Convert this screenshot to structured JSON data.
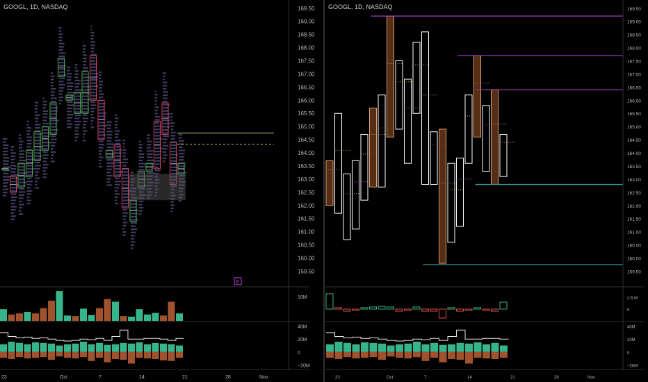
{
  "colors": {
    "background": "#000000",
    "axis_text": "#b8b8b8",
    "separator": "#3a3a3a",
    "up": "#38b48a",
    "down": "#a0522d",
    "profile": "#4b4670",
    "purple_line": "#a040c0",
    "cyan_line": "#3aa6a6",
    "box_up": "#ffffff",
    "box_down": "#d9a070"
  },
  "left_panel": {
    "title": "GOOGL, 1D, NASDAQ",
    "earnings_marker": "E"
  },
  "right_panel": {
    "title": "GOOGL, 1D, NASDAQ"
  },
  "chart_data": [
    {
      "type": "candlestick",
      "panel": "left-main",
      "y_ticks": [
        "169.50",
        "169.00",
        "168.50",
        "168.00",
        "167.50",
        "167.00",
        "166.50",
        "166.00",
        "165.50",
        "165.00",
        "164.50",
        "164.00",
        "163.50",
        "163.00",
        "162.50",
        "162.00",
        "161.50",
        "161.00",
        "160.50",
        "160.00",
        "159.50"
      ],
      "ylim": [
        159.3,
        169.6
      ],
      "x_ticks": [
        "23",
        "Oct",
        "7",
        "14",
        "21",
        "28",
        "Nov"
      ],
      "bars": [
        {
          "o": 163.4,
          "c": 163.4
        },
        {
          "o": 163.1,
          "c": 162.5
        },
        {
          "o": 162.7,
          "c": 163.6
        },
        {
          "o": 163.1,
          "c": 164.1
        },
        {
          "o": 163.7,
          "c": 164.8
        },
        {
          "o": 164.1,
          "c": 165.0
        },
        {
          "o": 164.7,
          "c": 165.9
        },
        {
          "o": 166.9,
          "c": 167.6
        },
        {
          "o": 166.0,
          "c": 166.2
        },
        {
          "o": 165.5,
          "c": 166.3
        },
        {
          "o": 165.5,
          "c": 167.1
        },
        {
          "o": 167.7,
          "c": 166.0
        },
        {
          "o": 166.0,
          "c": 164.5
        },
        {
          "o": 163.8,
          "c": 164.1
        },
        {
          "o": 164.3,
          "c": 163.1
        },
        {
          "o": 163.4,
          "c": 161.9
        },
        {
          "o": 161.4,
          "c": 162.2
        },
        {
          "o": 162.7,
          "c": 163.3
        },
        {
          "o": 163.3,
          "c": 163.6
        },
        {
          "o": 165.2,
          "c": 163.4
        },
        {
          "o": 165.9,
          "c": 164.7
        },
        {
          "o": 164.4,
          "c": 162.8
        },
        {
          "o": 163.2,
          "c": 163.6
        }
      ],
      "levels": [
        {
          "y": 164.75,
          "style": "solid"
        },
        {
          "y": 164.33,
          "style": "dashed"
        }
      ],
      "value_area_box": [
        162.2,
        163.2
      ]
    },
    {
      "type": "bar",
      "panel": "left-volume",
      "y_ticks": [
        "10M"
      ],
      "values": [
        22,
        12,
        14,
        17,
        14,
        24,
        38,
        56,
        10,
        9,
        23,
        11,
        24,
        41,
        36,
        9,
        8,
        22,
        12,
        15,
        10,
        36,
        14
      ],
      "direction": [
        "up",
        "down",
        "down",
        "up",
        "down",
        "down",
        "down",
        "up",
        "up",
        "down",
        "up",
        "up",
        "down",
        "down",
        "up",
        "down",
        "up",
        "up",
        "up",
        "up",
        "down",
        "down",
        "up"
      ]
    },
    {
      "type": "bar",
      "panel": "left-delta",
      "y_ticks": [
        "40M",
        "20M",
        "0",
        "−20M"
      ],
      "ylim": [
        -25,
        45
      ],
      "positive": [
        12,
        16,
        14,
        12,
        15,
        14,
        13,
        10,
        12,
        13,
        16,
        12,
        14,
        11,
        12,
        14,
        13,
        15,
        12,
        14,
        13,
        12,
        10
      ],
      "negative": [
        -9,
        -11,
        -8,
        -10,
        -9,
        -8,
        -12,
        -7,
        -9,
        -10,
        -8,
        -14,
        -9,
        -16,
        -11,
        -12,
        -18,
        -9,
        -10,
        -11,
        -13,
        -14,
        -9
      ],
      "line": [
        30,
        24,
        22,
        23,
        21,
        22,
        20,
        18,
        17,
        18,
        20,
        19,
        21,
        18,
        24,
        34,
        20,
        20,
        21,
        21,
        20,
        18,
        21
      ]
    },
    {
      "type": "box",
      "panel": "right-main",
      "y_ticks": [
        "169.50",
        "169.00",
        "168.50",
        "168.00",
        "167.50",
        "167.00",
        "166.50",
        "166.00",
        "165.50",
        "165.00",
        "164.50",
        "164.00",
        "163.50",
        "163.00",
        "162.50",
        "162.00",
        "161.50",
        "161.00",
        "160.50",
        "160.00",
        "159.50"
      ],
      "ylim": [
        159.3,
        169.6
      ],
      "x_ticks": [
        "23",
        "Oct",
        "7",
        "14",
        "21",
        "28",
        "Nov"
      ],
      "boxes": [
        {
          "lo": 162.0,
          "hi": 163.7,
          "dir": "down"
        },
        {
          "lo": 161.7,
          "hi": 165.5,
          "dir": "up"
        },
        {
          "lo": 160.7,
          "hi": 163.2,
          "dir": "up"
        },
        {
          "lo": 161.1,
          "hi": 163.7,
          "dir": "up"
        },
        {
          "lo": 162.2,
          "hi": 164.7,
          "dir": "up"
        },
        {
          "lo": 162.7,
          "hi": 165.7,
          "dir": "down"
        },
        {
          "lo": 162.7,
          "hi": 166.2,
          "dir": "up"
        },
        {
          "lo": 164.6,
          "hi": 169.2,
          "dir": "down"
        },
        {
          "lo": 164.9,
          "hi": 167.5,
          "dir": "up"
        },
        {
          "lo": 163.6,
          "hi": 166.8,
          "dir": "up"
        },
        {
          "lo": 165.5,
          "hi": 168.2,
          "dir": "up"
        },
        {
          "lo": 162.8,
          "hi": 168.6,
          "dir": "up"
        },
        {
          "lo": 162.8,
          "hi": 164.8,
          "dir": "up"
        },
        {
          "lo": 159.8,
          "hi": 164.9,
          "dir": "down"
        },
        {
          "lo": 160.6,
          "hi": 163.6,
          "dir": "up"
        },
        {
          "lo": 161.2,
          "hi": 163.8,
          "dir": "up"
        },
        {
          "lo": 163.6,
          "hi": 166.2,
          "dir": "up"
        },
        {
          "lo": 164.6,
          "hi": 167.7,
          "dir": "down"
        },
        {
          "lo": 163.3,
          "hi": 165.8,
          "dir": "up"
        },
        {
          "lo": 162.8,
          "hi": 166.4,
          "dir": "down"
        },
        {
          "lo": 163.1,
          "hi": 164.7,
          "dir": "up"
        }
      ],
      "purple_levels": [
        {
          "from": 5,
          "y": 169.2
        },
        {
          "from": 15,
          "y": 167.7
        },
        {
          "from": 17,
          "y": 166.4
        }
      ],
      "cyan_levels": [
        {
          "from": 17,
          "y": 162.8
        },
        {
          "from": 11,
          "y": 159.75
        }
      ]
    },
    {
      "type": "bar",
      "panel": "right-volume",
      "y_ticks": [
        "2.5 M",
        "0"
      ],
      "values": [
        2.2,
        0.1,
        -0.3,
        -0.2,
        0.1,
        0.3,
        0.4,
        0.3,
        -0.3,
        -0.2,
        0.3,
        -0.3,
        -0.3,
        -1.3,
        0.1,
        -0.3,
        -0.2,
        0.2,
        -0.2,
        -0.3,
        1.0
      ],
      "direction": [
        "up",
        "down",
        "down",
        "down",
        "up",
        "up",
        "up",
        "up",
        "down",
        "down",
        "up",
        "down",
        "down",
        "down",
        "up",
        "down",
        "down",
        "up",
        "down",
        "down",
        "up"
      ]
    },
    {
      "type": "bar",
      "panel": "right-delta",
      "y_ticks": [
        "40M",
        "20M",
        "0",
        "−20M"
      ],
      "ylim": [
        -25,
        45
      ],
      "positive": [
        12,
        16,
        14,
        12,
        15,
        14,
        13,
        10,
        12,
        13,
        16,
        12,
        14,
        11,
        12,
        14,
        13,
        15,
        12,
        14,
        10
      ],
      "negative": [
        -9,
        -11,
        -8,
        -10,
        -9,
        -8,
        -12,
        -7,
        -9,
        -10,
        -8,
        -14,
        -9,
        -16,
        -11,
        -12,
        -18,
        -9,
        -10,
        -11,
        -9
      ],
      "line": [
        30,
        24,
        22,
        23,
        21,
        22,
        20,
        18,
        17,
        18,
        20,
        19,
        21,
        18,
        24,
        34,
        20,
        20,
        21,
        21,
        20
      ]
    }
  ]
}
